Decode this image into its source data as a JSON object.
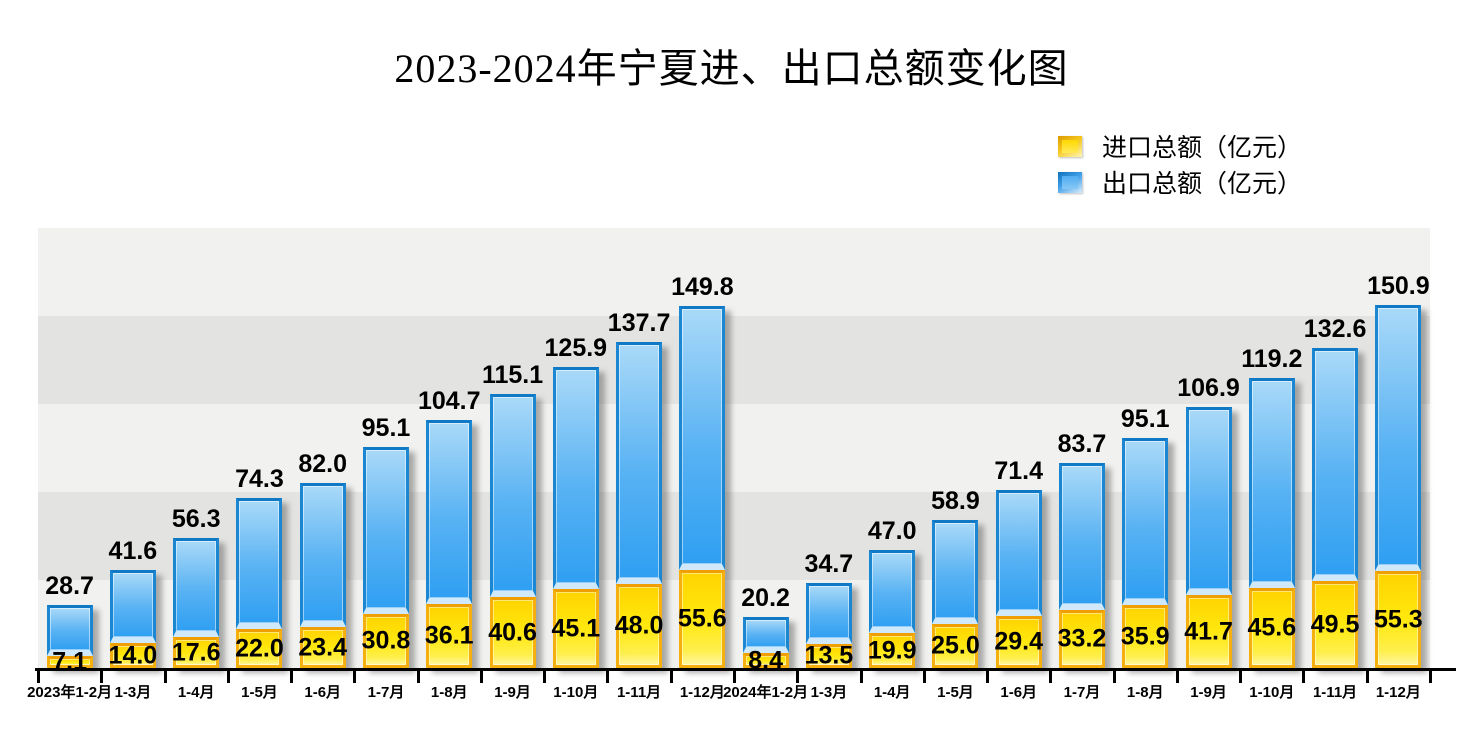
{
  "title": "2023-2024年宁夏进、出口总额变化图",
  "legend": {
    "items": [
      {
        "label": "进口总额（亿元）",
        "series": "import",
        "color": "#ffe000"
      },
      {
        "label": "出口总额（亿元）",
        "series": "export",
        "color": "#3da0f0"
      }
    ]
  },
  "chart_data": {
    "type": "bar",
    "stacked": true,
    "orientation": "vertical",
    "title": "2023-2024年宁夏进、出口总额变化图",
    "categories": [
      "2023年1-2月",
      "1-3月",
      "1-4月",
      "1-5月",
      "1-6月",
      "1-7月",
      "1-8月",
      "1-9月",
      "1-10月",
      "1-11月",
      "1-12月",
      "2024年1-2月",
      "1-3月",
      "1-4月",
      "1-5月",
      "1-6月",
      "1-7月",
      "1-8月",
      "1-9月",
      "1-10月",
      "1-11月",
      "1-12月"
    ],
    "series": [
      {
        "name": "进口总额（亿元）",
        "color": "#ffe000",
        "values": [
          7.1,
          14.0,
          17.6,
          22.0,
          23.4,
          30.8,
          36.1,
          40.6,
          45.1,
          48.0,
          55.6,
          8.4,
          13.5,
          19.9,
          25.0,
          29.4,
          33.2,
          35.9,
          41.7,
          45.6,
          49.5,
          55.3
        ]
      },
      {
        "name": "出口总额（亿元）",
        "color": "#3da0f0",
        "values": [
          28.7,
          41.6,
          56.3,
          74.3,
          82.0,
          95.1,
          104.7,
          115.1,
          125.9,
          137.7,
          149.8,
          20.2,
          34.7,
          47.0,
          58.9,
          71.4,
          83.7,
          95.1,
          106.9,
          119.2,
          132.6,
          150.9
        ]
      }
    ],
    "value_labels": "one_decimal",
    "ylim": [
      0,
      250
    ],
    "grid_band_interval": 50,
    "grid": "horizontal-bands",
    "legend_position": "top-right",
    "band_colors": [
      "#f1f1ef",
      "#e3e3e1"
    ]
  }
}
